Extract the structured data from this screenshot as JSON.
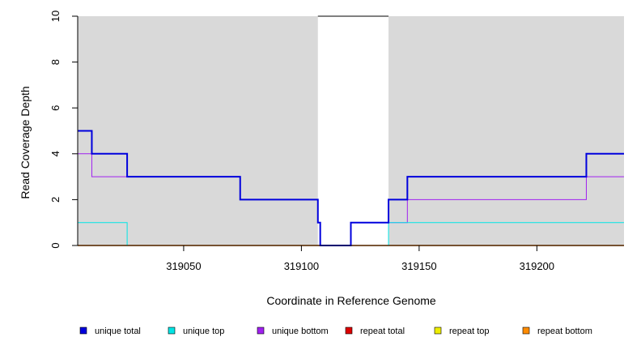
{
  "chart_data": {
    "type": "line",
    "title": "",
    "xlabel": "Coordinate in Reference Genome",
    "ylabel": "Read Coverage Depth",
    "xlim": [
      319005,
      319237
    ],
    "ylim": [
      0,
      10
    ],
    "x_ticks": [
      319050,
      319100,
      319150,
      319200
    ],
    "y_ticks": [
      0,
      2,
      4,
      6,
      8,
      10
    ],
    "grid": false,
    "background_color": "#d9d9d9",
    "legend_position": "bottom",
    "gap_regions": [
      {
        "x_start": 319107,
        "x_end": 319137,
        "y_top": 10
      }
    ],
    "series": [
      {
        "name": "unique total",
        "color": "#0000dd",
        "step": true,
        "x": [
          319005,
          319011,
          319026,
          319074,
          319107,
          319108,
          319121,
          319137,
          319145,
          319221,
          319237
        ],
        "y": [
          5,
          4,
          3,
          2,
          1,
          0,
          1,
          2,
          3,
          4,
          4
        ]
      },
      {
        "name": "unique top",
        "color": "#00e5e5",
        "step": true,
        "x": [
          319005,
          319026,
          319137,
          319237
        ],
        "y": [
          1,
          0,
          1,
          1
        ]
      },
      {
        "name": "unique bottom",
        "color": "#a020f0",
        "step": true,
        "x": [
          319005,
          319011,
          319074,
          319107,
          319108,
          319121,
          319137,
          319145,
          319221,
          319237
        ],
        "y": [
          4,
          3,
          2,
          1,
          0,
          1,
          1,
          2,
          3,
          3
        ]
      },
      {
        "name": "repeat total",
        "color": "#dd0000",
        "step": true,
        "x": [
          319005,
          319237
        ],
        "y": [
          0,
          0
        ]
      },
      {
        "name": "repeat top",
        "color": "#eeee00",
        "step": true,
        "x": [
          319005,
          319237
        ],
        "y": [
          0,
          0
        ]
      },
      {
        "name": "repeat bottom",
        "color": "#ff8c00",
        "step": true,
        "x": [
          319005,
          319237
        ],
        "y": [
          0,
          0
        ]
      }
    ]
  }
}
